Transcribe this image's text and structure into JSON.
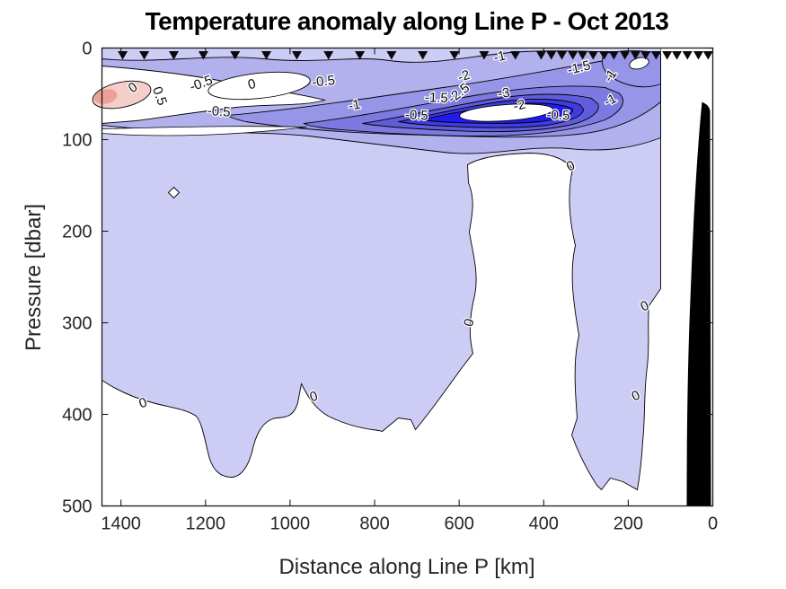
{
  "title": "Temperature anomaly along Line P - Oct 2013",
  "axes": {
    "x": {
      "label": "Distance along Line P [km]",
      "ticks": [
        1400,
        1200,
        1000,
        800,
        600,
        400,
        200,
        0
      ],
      "min": 0,
      "max": 1445,
      "reversed": true
    },
    "y": {
      "label": "Pressure [dbar]",
      "ticks": [
        0,
        100,
        200,
        300,
        400,
        500
      ],
      "min": 0,
      "max": 500,
      "increases_downward": true
    }
  },
  "colors": {
    "band_pos_light": "#ffffff",
    "band_0_m05": "#cdccf4",
    "band_light_strip": "#dcdbf8",
    "band_m05_m1": "#b2b1ee",
    "band_m1_m15": "#9795e8",
    "band_m15_m2": "#7c7ae1",
    "band_m2_m25": "#605cdb",
    "band_m25_m3": "#403ce0",
    "band_m3_m35": "#1e1af0",
    "pink_05_1": "#f5cdc9",
    "pink_1_15": "#ee9f98",
    "seafloor": "#000000",
    "station_marker": "#0a0a0a",
    "axis": "#1a1a1a",
    "contour_line": "#000000"
  },
  "chart_data": {
    "type": "filled_contour",
    "title": "Temperature anomaly along Line P - Oct 2013",
    "xlabel": "Distance along Line P [km]",
    "ylabel": "Pressure [dbar]",
    "x_range_km": [
      1445,
      0
    ],
    "y_range_dbar": [
      0,
      500
    ],
    "x_axis_reversed": true,
    "contour_interval": 0.5,
    "levels": [
      -3.5,
      -3,
      -2.5,
      -2,
      -1.5,
      -1,
      -0.5,
      0,
      0.5,
      1
    ],
    "station_markers_km": [
      1396,
      1345,
      1275,
      1205,
      1130,
      1056,
      984,
      909,
      835,
      760,
      686,
      611,
      541,
      467,
      406,
      382,
      357,
      331,
      308,
      283,
      257,
      234,
      208,
      183,
      159,
      134,
      108,
      85,
      60,
      34,
      11
    ],
    "contour_labels": [
      {
        "value": "0",
        "km": 1366,
        "dbar": 47,
        "rot": -35
      },
      {
        "value": "0.5",
        "km": 1318,
        "dbar": 54,
        "rot": 70
      },
      {
        "value": "-0.5",
        "km": 1207,
        "dbar": 43,
        "rot": -20
      },
      {
        "value": "-0.5",
        "km": 1169,
        "dbar": 74,
        "rot": 4
      },
      {
        "value": "0",
        "km": 1088,
        "dbar": 44,
        "rot": -15
      },
      {
        "value": "-0.5",
        "km": 920,
        "dbar": 41,
        "rot": -6
      },
      {
        "value": "-1",
        "km": 846,
        "dbar": 67,
        "rot": -12
      },
      {
        "value": "-0.5",
        "km": 701,
        "dbar": 78,
        "rot": 3
      },
      {
        "value": "-1.5",
        "km": 654,
        "dbar": 59,
        "rot": 2
      },
      {
        "value": "-2",
        "km": 586,
        "dbar": 35,
        "rot": -18
      },
      {
        "value": "-2.5",
        "km": 595,
        "dbar": 53,
        "rot": -38
      },
      {
        "value": "-3",
        "km": 493,
        "dbar": 54,
        "rot": -8
      },
      {
        "value": "-2",
        "km": 455,
        "dbar": 67,
        "rot": -14
      },
      {
        "value": "-1",
        "km": 502,
        "dbar": 14,
        "rot": -14
      },
      {
        "value": "-1.5",
        "km": 314,
        "dbar": 26,
        "rot": -14
      },
      {
        "value": "-1",
        "km": 234,
        "dbar": 33,
        "rot": -55
      },
      {
        "value": "-1",
        "km": 238,
        "dbar": 61,
        "rot": -28
      },
      {
        "value": "-0.5",
        "km": 366,
        "dbar": 78,
        "rot": 2
      },
      {
        "value": "0",
        "km": 332,
        "dbar": 133,
        "rot": -25
      },
      {
        "value": "0",
        "km": 1345,
        "dbar": 392,
        "rot": -18
      },
      {
        "value": "0",
        "km": 941,
        "dbar": 385,
        "rot": -18
      },
      {
        "value": "0",
        "km": 567,
        "dbar": 301,
        "rot": -75
      },
      {
        "value": "0",
        "km": 157,
        "dbar": 286,
        "rot": -25
      },
      {
        "value": "0",
        "km": 178,
        "dbar": 384,
        "rot": -25
      }
    ],
    "notable_features": [
      {
        "name": "cold_core",
        "km_range": [
          250,
          620
        ],
        "dbar_range": [
          30,
          110
        ],
        "min_below_level": -3.5
      },
      {
        "name": "warm_surface_patch",
        "km_range": [
          1330,
          1445
        ],
        "dbar_range": [
          35,
          75
        ],
        "max_above_level": 1
      },
      {
        "name": "near_zero_deep_water",
        "description": "anomaly between -0.5 and 0 over most of section below 150 dbar"
      },
      {
        "name": "seafloor_shelf",
        "km_range": [
          40,
          0
        ],
        "dbar_range": [
          60,
          500
        ]
      }
    ],
    "legend": "none",
    "grid": false
  }
}
